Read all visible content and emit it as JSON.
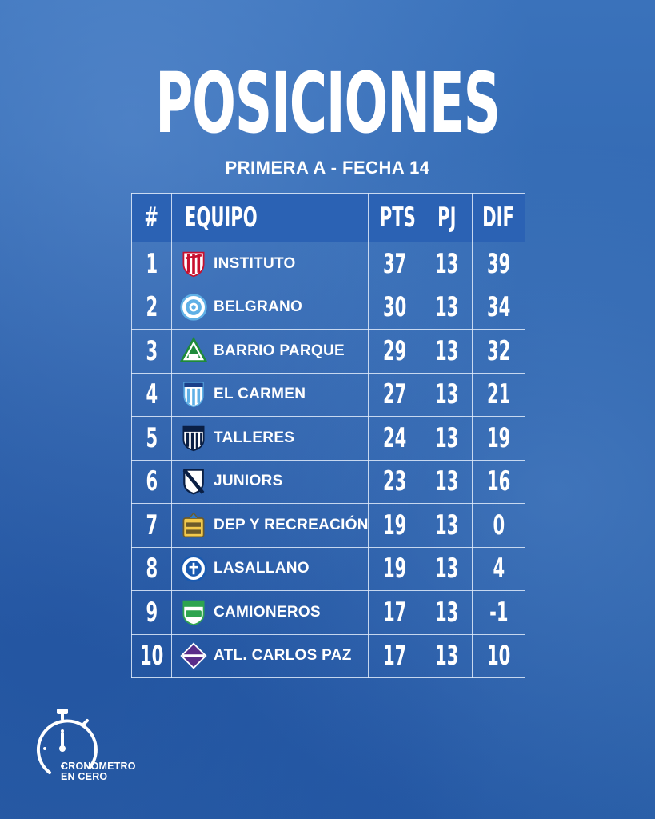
{
  "title": "POSICIONES",
  "subtitle": "PRIMERA A - FECHA 14",
  "headers": {
    "pos": "#",
    "team": "EQUIPO",
    "pts": "PTS",
    "pj": "PJ",
    "dif": "DIF"
  },
  "rows": [
    {
      "pos": "1",
      "team": "INSTITUTO",
      "pts": "37",
      "pj": "13",
      "dif": "39",
      "crest": "instituto-crest-icon"
    },
    {
      "pos": "2",
      "team": "BELGRANO",
      "pts": "30",
      "pj": "13",
      "dif": "34",
      "crest": "belgrano-crest-icon"
    },
    {
      "pos": "3",
      "team": "BARRIO PARQUE",
      "pts": "29",
      "pj": "13",
      "dif": "32",
      "crest": "barrio-parque-crest-icon"
    },
    {
      "pos": "4",
      "team": "EL CARMEN",
      "pts": "27",
      "pj": "13",
      "dif": "21",
      "crest": "el-carmen-crest-icon"
    },
    {
      "pos": "5",
      "team": "TALLERES",
      "pts": "24",
      "pj": "13",
      "dif": "19",
      "crest": "talleres-crest-icon"
    },
    {
      "pos": "6",
      "team": "JUNIORS",
      "pts": "23",
      "pj": "13",
      "dif": "16",
      "crest": "juniors-crest-icon"
    },
    {
      "pos": "7",
      "team": "DEP Y RECREACIÓN",
      "pts": "19",
      "pj": "13",
      "dif": "0",
      "crest": "dep-y-recreacion-crest-icon"
    },
    {
      "pos": "8",
      "team": "LASALLANO",
      "pts": "19",
      "pj": "13",
      "dif": "4",
      "crest": "lasallano-crest-icon"
    },
    {
      "pos": "9",
      "team": "CAMIONEROS",
      "pts": "17",
      "pj": "13",
      "dif": "-1",
      "crest": "camioneros-crest-icon"
    },
    {
      "pos": "10",
      "team": "ATL. CARLOS PAZ",
      "pts": "17",
      "pj": "13",
      "dif": "10",
      "crest": "atl-carlos-paz-crest-icon"
    }
  ],
  "brand": {
    "line1": "CRONOMETRO",
    "line2": "EN CERO",
    "icon": "stopwatch-icon"
  },
  "colors": {
    "background": "#2f66b0",
    "header": "#2b62b4",
    "grid": "#e1ebfa",
    "text": "#ffffff"
  }
}
